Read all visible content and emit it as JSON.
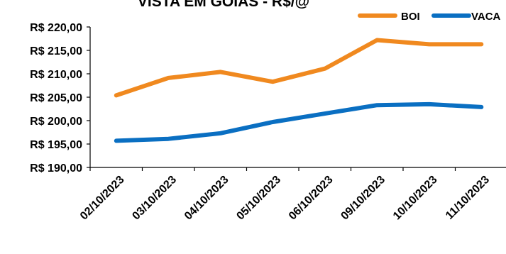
{
  "chart_data": {
    "type": "line",
    "title": "VISTA EM GOIAS - R$/@",
    "categories": [
      "02/10/2023",
      "03/10/2023",
      "04/10/2023",
      "05/10/2023",
      "06/10/2023",
      "09/10/2023",
      "10/10/2023",
      "11/10/2023"
    ],
    "series": [
      {
        "name": "BOI",
        "color": "#f0891f",
        "values": [
          205.4,
          209.1,
          210.4,
          208.3,
          211.1,
          217.2,
          216.3,
          216.3
        ]
      },
      {
        "name": "VACA",
        "color": "#0a6fc2",
        "values": [
          195.7,
          196.1,
          197.3,
          199.7,
          201.5,
          203.3,
          203.5,
          202.9
        ]
      }
    ],
    "ylim": [
      190,
      220
    ],
    "yticks": [
      "R$ 220,00",
      "R$ 215,00",
      "R$ 210,00",
      "R$ 205,00",
      "R$ 200,00",
      "R$ 195,00",
      "R$ 190,00"
    ],
    "ytick_values": [
      220,
      215,
      210,
      205,
      200,
      195,
      190
    ],
    "xlabel": "",
    "ylabel": "",
    "legend_position": "top-right",
    "grid": false
  }
}
